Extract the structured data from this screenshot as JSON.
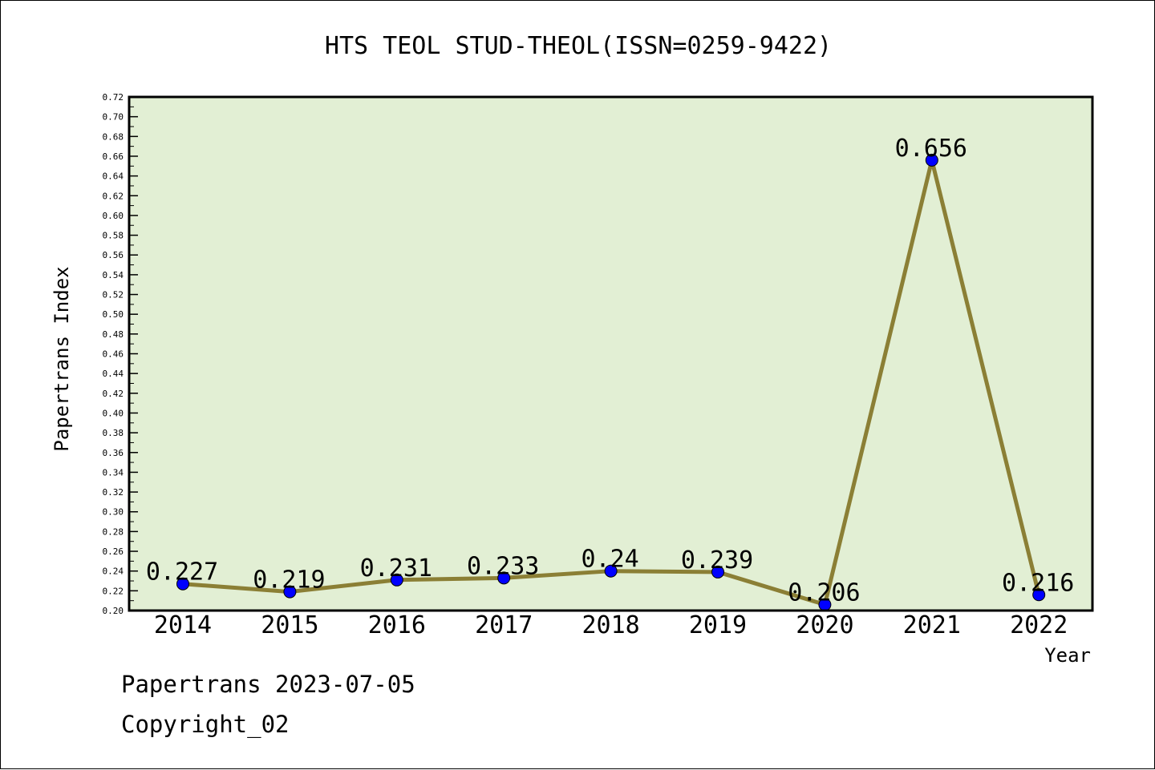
{
  "chart_data": {
    "type": "line",
    "title": "HTS TEOL STUD-THEOL(ISSN=0259-9422)",
    "xlabel": "Year",
    "ylabel": "Papertrans Index",
    "categories": [
      "2014",
      "2015",
      "2016",
      "2017",
      "2018",
      "2019",
      "2020",
      "2021",
      "2022"
    ],
    "values": [
      0.227,
      0.219,
      0.231,
      0.233,
      0.24,
      0.239,
      0.206,
      0.656,
      0.216
    ],
    "data_labels": [
      "0.227",
      "0.219",
      "0.231",
      "0.233",
      "0.24",
      "0.239",
      "0.206",
      "0.656",
      "0.216"
    ],
    "ylim": [
      0.2,
      0.72
    ],
    "yticks": [
      "0.20",
      "0.22",
      "0.24",
      "0.26",
      "0.28",
      "0.30",
      "0.32",
      "0.34",
      "0.36",
      "0.38",
      "0.40",
      "0.42",
      "0.44",
      "0.46",
      "0.48",
      "0.50",
      "0.52",
      "0.54",
      "0.56",
      "0.58",
      "0.60",
      "0.62",
      "0.64",
      "0.66",
      "0.68",
      "0.70",
      "0.72"
    ],
    "grid": false,
    "colors": {
      "plot_background": "#e2efd4",
      "line": "#8b7f35",
      "marker": "#0000ff"
    }
  },
  "footer": {
    "line1": "Papertrans 2023-07-05",
    "line2": "Copyright_02"
  }
}
